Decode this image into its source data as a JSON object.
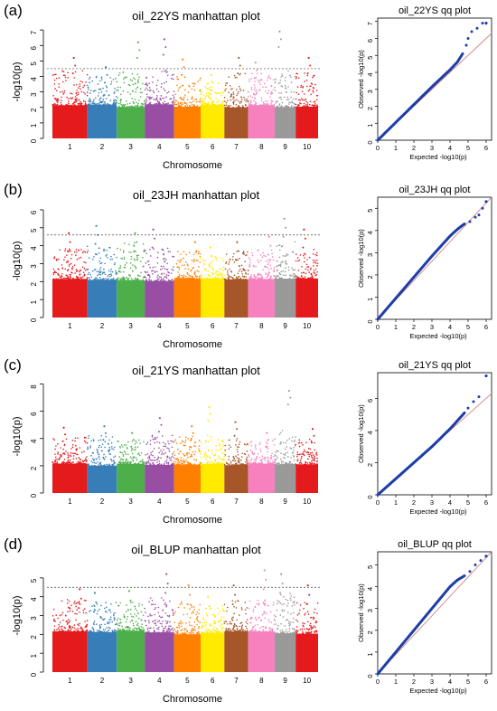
{
  "chromosome_colors": [
    "#e41a1c",
    "#377eb8",
    "#4daf4a",
    "#984ea3",
    "#ff7f00",
    "#ffea00",
    "#a65628",
    "#f781bf",
    "#999999",
    "#e41a1c"
  ],
  "qq_point_color": "#1f3ea8",
  "qq_line_color": "#d08080",
  "panels": [
    {
      "label": "(a)",
      "chart_data": [
        {
          "type": "scatter",
          "title": "oil_22YS manhattan plot",
          "xlabel": "Chromosome",
          "ylabel": "-log10(p)",
          "categories": [
            "1",
            "2",
            "3",
            "4",
            "5",
            "6",
            "7",
            "8",
            "9",
            "10"
          ],
          "ylim": [
            0,
            7.3
          ],
          "yticks": [
            0,
            1,
            2,
            3,
            4,
            5,
            6,
            7
          ],
          "threshold": 4.5,
          "chromosome_peaks": [
            5.2,
            4.6,
            6.2,
            6.4,
            5.1,
            4.1,
            5.2,
            4.9,
            6.9,
            5.2
          ],
          "chromosome_base_max": [
            4.4,
            4.0,
            4.3,
            4.4,
            4.0,
            3.9,
            4.3,
            4.2,
            4.5,
            4.3
          ]
        },
        {
          "type": "scatter",
          "title": "oil_22YS qq plot",
          "xlabel": "Expected -log10(p)",
          "ylabel": "Observed -log10(p)",
          "xlim": [
            0,
            6.3
          ],
          "ylim": [
            0,
            7.2
          ],
          "xticks": [
            0,
            1,
            2,
            3,
            4,
            5,
            6
          ],
          "yticks": [
            0,
            1,
            2,
            3,
            4,
            5,
            6,
            7
          ],
          "points": [
            [
              0,
              0
            ],
            [
              1,
              1.05
            ],
            [
              2,
              2.1
            ],
            [
              3,
              3.15
            ],
            [
              3.5,
              3.65
            ],
            [
              4,
              4.15
            ],
            [
              4.4,
              4.6
            ],
            [
              4.7,
              5.1
            ],
            [
              4.9,
              5.6
            ],
            [
              5.0,
              6.0
            ],
            [
              5.2,
              6.4
            ],
            [
              5.5,
              6.6
            ],
            [
              5.8,
              6.9
            ],
            [
              6.0,
              6.9
            ]
          ]
        }
      ]
    },
    {
      "label": "(b)",
      "chart_data": [
        {
          "type": "scatter",
          "title": "oil_23JH manhattan plot",
          "xlabel": "Chromosome",
          "ylabel": "-log10(p)",
          "categories": [
            "1",
            "2",
            "3",
            "4",
            "5",
            "6",
            "7",
            "8",
            "9",
            "10"
          ],
          "ylim": [
            0,
            6.3
          ],
          "yticks": [
            0,
            1,
            2,
            3,
            4,
            5,
            6
          ],
          "threshold": 4.6,
          "chromosome_peaks": [
            4.7,
            5.1,
            4.7,
            4.9,
            4.2,
            3.9,
            4.2,
            4.5,
            5.5,
            4.9
          ],
          "chromosome_base_max": [
            3.9,
            4.0,
            4.2,
            3.9,
            3.7,
            3.5,
            3.7,
            3.8,
            4.3,
            3.9
          ]
        },
        {
          "type": "scatter",
          "title": "oil_23JH qq plot",
          "xlabel": "Expected -log10(p)",
          "ylabel": "Observed -log10(p)",
          "xlim": [
            0,
            6.3
          ],
          "ylim": [
            0,
            5.5
          ],
          "xticks": [
            0,
            1,
            2,
            3,
            4,
            5,
            6
          ],
          "yticks": [
            0,
            1,
            2,
            3,
            4,
            5
          ],
          "points": [
            [
              0,
              0
            ],
            [
              1,
              0.95
            ],
            [
              2,
              1.9
            ],
            [
              3,
              2.85
            ],
            [
              3.5,
              3.3
            ],
            [
              4,
              3.75
            ],
            [
              4.4,
              4.05
            ],
            [
              4.8,
              4.3
            ],
            [
              5.1,
              4.4
            ],
            [
              5.4,
              4.6
            ],
            [
              5.6,
              4.7
            ],
            [
              5.8,
              5.0
            ],
            [
              6.0,
              5.3
            ]
          ]
        }
      ]
    },
    {
      "label": "(c)",
      "chart_data": [
        {
          "type": "scatter",
          "title": "oil_21YS manhattan plot",
          "xlabel": "Chromosome",
          "ylabel": "-log10(p)",
          "categories": [
            "1",
            "2",
            "3",
            "4",
            "5",
            "6",
            "7",
            "8",
            "9",
            "10"
          ],
          "ylim": [
            0,
            8.3
          ],
          "yticks": [
            0,
            2,
            4,
            6,
            8
          ],
          "threshold": null,
          "chromosome_peaks": [
            4.8,
            4.9,
            4.4,
            5.5,
            4.9,
            6.3,
            5.2,
            4.4,
            7.5,
            4.7
          ],
          "chromosome_base_max": [
            4.1,
            4.2,
            3.9,
            4.3,
            4.2,
            4.3,
            4.0,
            3.9,
            4.6,
            4.0
          ]
        },
        {
          "type": "scatter",
          "title": "oil_21YS qq plot",
          "xlabel": "Expected -log10(p)",
          "ylabel": "Observed -log10(p)",
          "xlim": [
            0,
            6.3
          ],
          "ylim": [
            0,
            7.6
          ],
          "xticks": [
            0,
            1,
            2,
            3,
            4,
            5,
            6
          ],
          "yticks": [
            0,
            2,
            4,
            6
          ],
          "points": [
            [
              0,
              0
            ],
            [
              1,
              1.0
            ],
            [
              2,
              2.0
            ],
            [
              3,
              3.0
            ],
            [
              3.5,
              3.55
            ],
            [
              4,
              4.1
            ],
            [
              4.4,
              4.6
            ],
            [
              4.8,
              5.1
            ],
            [
              5.0,
              5.4
            ],
            [
              5.3,
              5.8
            ],
            [
              5.6,
              6.1
            ],
            [
              6.0,
              7.4
            ]
          ]
        }
      ]
    },
    {
      "label": "(d)",
      "chart_data": [
        {
          "type": "scatter",
          "title": "oil_BLUP manhattan plot",
          "xlabel": "Chromosome",
          "ylabel": "-log10(p)",
          "categories": [
            "1",
            "2",
            "3",
            "4",
            "5",
            "6",
            "7",
            "8",
            "9",
            "10"
          ],
          "ylim": [
            0,
            6.0
          ],
          "yticks": [
            0,
            1,
            2,
            3,
            4,
            5
          ],
          "threshold": 4.5,
          "chromosome_peaks": [
            4.4,
            4.2,
            4.3,
            5.2,
            4.6,
            4.0,
            4.6,
            5.4,
            5.2,
            4.6
          ],
          "chromosome_base_max": [
            3.9,
            3.7,
            3.8,
            4.0,
            3.8,
            3.5,
            3.8,
            3.9,
            4.2,
            3.8
          ]
        },
        {
          "type": "scatter",
          "title": "oil_BLUP qq plot",
          "xlabel": "Expected -log10(p)",
          "ylabel": "Observed -log10(p)",
          "xlim": [
            0,
            6.3
          ],
          "ylim": [
            0,
            5.6
          ],
          "xticks": [
            0,
            1,
            2,
            3,
            4,
            5,
            6
          ],
          "yticks": [
            0,
            1,
            2,
            3,
            4,
            5
          ],
          "points": [
            [
              0,
              0
            ],
            [
              1,
              1.0
            ],
            [
              2,
              2.0
            ],
            [
              3,
              3.0
            ],
            [
              3.5,
              3.5
            ],
            [
              4,
              4.0
            ],
            [
              4.4,
              4.3
            ],
            [
              4.8,
              4.5
            ],
            [
              5.1,
              4.7
            ],
            [
              5.4,
              5.0
            ],
            [
              5.7,
              5.2
            ],
            [
              6.0,
              5.4
            ]
          ]
        }
      ]
    }
  ]
}
